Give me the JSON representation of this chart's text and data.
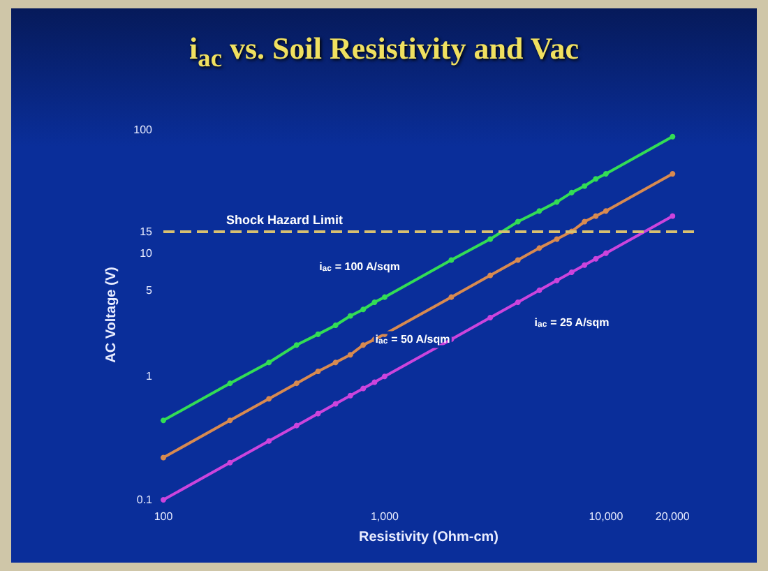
{
  "chart_data": {
    "type": "line",
    "title": "i$_{ac}$ vs. Soil Resistivity and Vac",
    "xlabel": "Resistivity (Ohm-cm)",
    "ylabel": "AC Voltage (V)",
    "x": [
      100,
      200,
      300,
      400,
      500,
      600,
      700,
      800,
      900,
      1000,
      2000,
      3000,
      4000,
      5000,
      6000,
      7000,
      8000,
      9000,
      10000,
      20000
    ],
    "series": [
      {
        "name": "i$_{ac}$ = 100 A/sqm",
        "color": "#33dd55",
        "values": [
          0.44,
          0.88,
          1.3,
          1.8,
          2.2,
          2.6,
          3.1,
          3.5,
          4,
          4.4,
          8.8,
          13,
          18,
          22,
          26,
          31,
          35,
          40,
          44,
          88
        ]
      },
      {
        "name": "i$_{ac}$ = 50 A/sqm",
        "color": "#d88a50",
        "values": [
          0.22,
          0.44,
          0.66,
          0.88,
          1.1,
          1.3,
          1.5,
          1.8,
          2,
          2.2,
          4.4,
          6.6,
          8.8,
          11,
          13,
          15,
          18,
          20,
          22,
          44
        ]
      },
      {
        "name": "i$_{ac}$ = 25 A/sqm",
        "color": "#cc44dd",
        "values": [
          0.1,
          0.2,
          0.3,
          0.4,
          0.5,
          0.6,
          0.7,
          0.8,
          0.9,
          1,
          2,
          3,
          4,
          5,
          6,
          7,
          8,
          9,
          10,
          20
        ]
      }
    ],
    "ref_lines": [
      {
        "axis": "y",
        "value": 15,
        "label": "Shock Hazard Limit",
        "color": "#d8c070",
        "line_style": "dashed"
      }
    ],
    "log": "xy",
    "xlim": [
      100,
      25000
    ],
    "ylim": [
      0.1,
      100
    ],
    "xticks": [
      100,
      {
        "value": 1000,
        "label": "1,000"
      },
      {
        "value": 10000,
        "label": "10,000"
      },
      {
        "value": 20000,
        "label": "20,000"
      }
    ],
    "yticks": [
      0.1,
      1,
      5,
      10,
      15,
      100
    ],
    "grid": false,
    "legend": false,
    "marker": "circle",
    "line_style": "solid"
  }
}
